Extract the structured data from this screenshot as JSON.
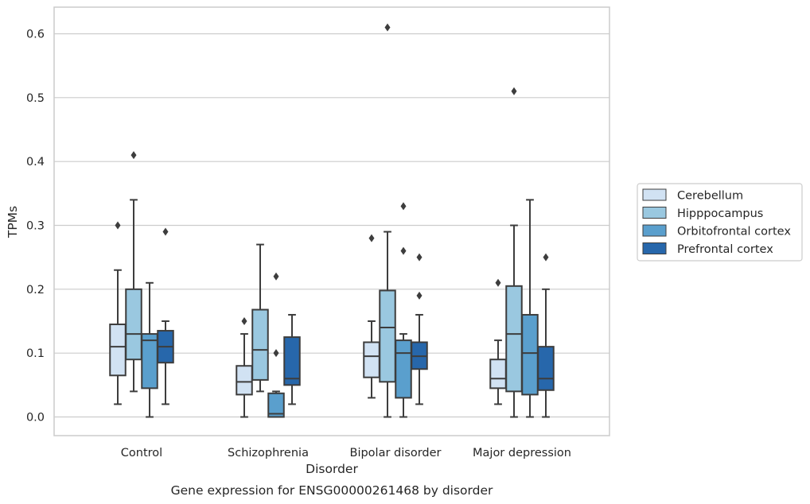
{
  "chart_data": {
    "type": "box",
    "title": "",
    "caption": "Gene expression for ENSG00000261468 by disorder",
    "xlabel": "Disorder",
    "ylabel": "TPMs",
    "ylim": [
      -0.03,
      0.64
    ],
    "yticks": [
      0.0,
      0.1,
      0.2,
      0.3,
      0.4,
      0.5,
      0.6
    ],
    "yticklabels": [
      "0.0",
      "0.1",
      "0.2",
      "0.3",
      "0.4",
      "0.5",
      "0.6"
    ],
    "grid": "horizontal",
    "legend_position": "right",
    "categories": [
      "Control",
      "Schizophrenia",
      "Bipolar disorder",
      "Major depression"
    ],
    "series": [
      {
        "name": "Cerebellum",
        "color": "#d1e2f3",
        "boxes": [
          {
            "whisker_low": 0.02,
            "q1": 0.065,
            "median": 0.11,
            "q3": 0.145,
            "whisker_high": 0.23,
            "outliers": [
              0.3
            ]
          },
          {
            "whisker_low": 0.0,
            "q1": 0.035,
            "median": 0.055,
            "q3": 0.08,
            "whisker_high": 0.13,
            "outliers": [
              0.15
            ]
          },
          {
            "whisker_low": 0.03,
            "q1": 0.062,
            "median": 0.095,
            "q3": 0.117,
            "whisker_high": 0.15,
            "outliers": [
              0.28
            ]
          },
          {
            "whisker_low": 0.02,
            "q1": 0.045,
            "median": 0.06,
            "q3": 0.09,
            "whisker_high": 0.12,
            "outliers": [
              0.21
            ]
          }
        ]
      },
      {
        "name": "Hipppocampus",
        "color": "#9ac8e0",
        "boxes": [
          {
            "whisker_low": 0.04,
            "q1": 0.09,
            "median": 0.13,
            "q3": 0.2,
            "whisker_high": 0.34,
            "outliers": [
              0.41
            ]
          },
          {
            "whisker_low": 0.04,
            "q1": 0.058,
            "median": 0.105,
            "q3": 0.168,
            "whisker_high": 0.27,
            "outliers": []
          },
          {
            "whisker_low": 0.0,
            "q1": 0.055,
            "median": 0.14,
            "q3": 0.198,
            "whisker_high": 0.29,
            "outliers": [
              0.61
            ]
          },
          {
            "whisker_low": 0.0,
            "q1": 0.04,
            "median": 0.13,
            "q3": 0.205,
            "whisker_high": 0.3,
            "outliers": [
              0.51
            ]
          }
        ]
      },
      {
        "name": "Orbitofrontal cortex",
        "color": "#5a9fcd",
        "boxes": [
          {
            "whisker_low": 0.0,
            "q1": 0.045,
            "median": 0.12,
            "q3": 0.13,
            "whisker_high": 0.21,
            "outliers": []
          },
          {
            "whisker_low": 0.0,
            "q1": 0.0,
            "median": 0.005,
            "q3": 0.037,
            "whisker_high": 0.04,
            "outliers": [
              0.22,
              0.1
            ]
          },
          {
            "whisker_low": 0.0,
            "q1": 0.03,
            "median": 0.1,
            "q3": 0.12,
            "whisker_high": 0.13,
            "outliers": [
              0.33,
              0.26
            ]
          },
          {
            "whisker_low": 0.0,
            "q1": 0.035,
            "median": 0.1,
            "q3": 0.16,
            "whisker_high": 0.34,
            "outliers": []
          }
        ]
      },
      {
        "name": "Prefrontal cortex",
        "color": "#2767ab",
        "boxes": [
          {
            "whisker_low": 0.02,
            "q1": 0.085,
            "median": 0.11,
            "q3": 0.135,
            "whisker_high": 0.15,
            "outliers": [
              0.29
            ]
          },
          {
            "whisker_low": 0.02,
            "q1": 0.05,
            "median": 0.06,
            "q3": 0.125,
            "whisker_high": 0.16,
            "outliers": []
          },
          {
            "whisker_low": 0.02,
            "q1": 0.075,
            "median": 0.095,
            "q3": 0.117,
            "whisker_high": 0.16,
            "outliers": [
              0.25,
              0.19
            ]
          },
          {
            "whisker_low": 0.0,
            "q1": 0.042,
            "median": 0.06,
            "q3": 0.11,
            "whisker_high": 0.2,
            "outliers": [
              0.25
            ]
          }
        ]
      }
    ]
  }
}
